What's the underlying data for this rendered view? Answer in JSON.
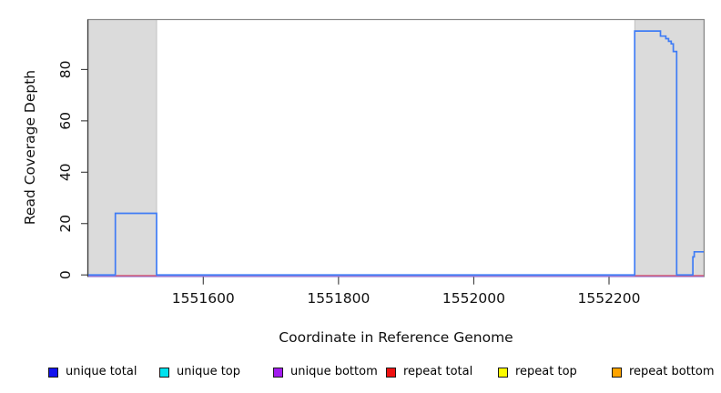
{
  "figure": {
    "y_axis_label": "Read Coverage Depth",
    "x_axis_label": "Coordinate in Reference Genome"
  },
  "legend": [
    {
      "label": "unique total",
      "color": "#1212EE"
    },
    {
      "label": "unique top",
      "color": "#00E2EE"
    },
    {
      "label": "unique bottom",
      "color": "#A21CEF"
    },
    {
      "label": "repeat total",
      "color": "#EE1111"
    },
    {
      "label": "repeat top",
      "color": "#FCFC00"
    },
    {
      "label": "repeat bottom",
      "color": "#FFA400"
    }
  ],
  "chart_data": {
    "type": "line",
    "title": "",
    "xlabel": "Coordinate in Reference Genome",
    "ylabel": "Read Coverage Depth",
    "xlim": [
      1551430,
      1552340
    ],
    "ylim": [
      0,
      99
    ],
    "x_ticks": [
      1551600,
      1551800,
      1552000,
      1552200
    ],
    "y_ticks": [
      0,
      20,
      40,
      60,
      80
    ],
    "grid": false,
    "legend_position": "bottom",
    "shade_color": "#DBDBDB",
    "shaded_regions": [
      {
        "from": 1551430,
        "to": 1551531
      },
      {
        "from": 1552238,
        "to": 1552340
      }
    ],
    "series": [
      {
        "name": "unique bottom",
        "color": "#8F6CD9",
        "segments": [
          [
            [
              1551430,
              0
            ],
            [
              1552340,
              0
            ]
          ]
        ]
      },
      {
        "name": "repeat total",
        "color": "#D75B73",
        "segments": [
          [
            [
              1551470,
              0
            ],
            [
              1551531,
              0
            ]
          ],
          [
            [
              1552238,
              0
            ],
            [
              1552340,
              0
            ]
          ]
        ]
      },
      {
        "name": "unique total",
        "color": "#3F7CF5",
        "segments": [
          [
            [
              1551430,
              0
            ],
            [
              1551470,
              0
            ],
            [
              1551470,
              24
            ],
            [
              1551531,
              24
            ],
            [
              1551531,
              0
            ],
            [
              1552238,
              0
            ],
            [
              1552238,
              95
            ],
            [
              1552276,
              95
            ],
            [
              1552276,
              93
            ],
            [
              1552284,
              93
            ],
            [
              1552284,
              92
            ],
            [
              1552288,
              92
            ],
            [
              1552288,
              91
            ],
            [
              1552292,
              91
            ],
            [
              1552292,
              90
            ],
            [
              1552295,
              90
            ],
            [
              1552295,
              87
            ],
            [
              1552300,
              87
            ],
            [
              1552300,
              0
            ],
            [
              1552324,
              0
            ],
            [
              1552324,
              7
            ],
            [
              1552326,
              7
            ],
            [
              1552326,
              9
            ],
            [
              1552340,
              9
            ]
          ]
        ]
      }
    ]
  }
}
